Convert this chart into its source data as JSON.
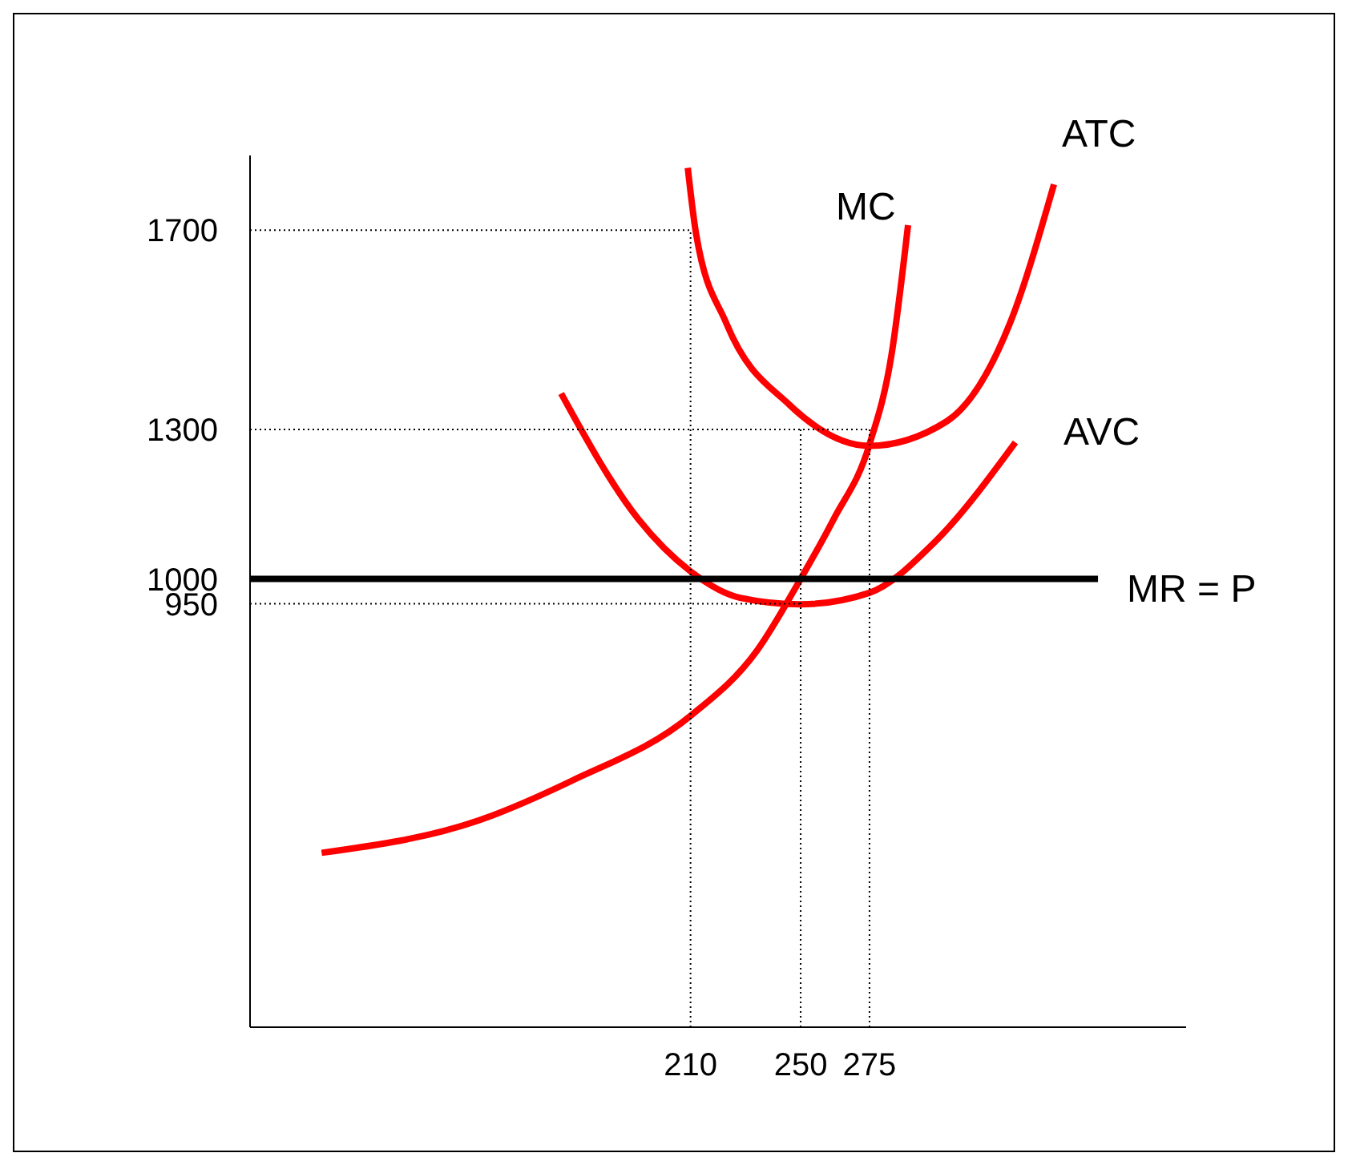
{
  "chart_data": {
    "type": "line",
    "xlim": [
      50,
      390
    ],
    "ylim": [
      100,
      1850
    ],
    "xticks": [
      210,
      250,
      275
    ],
    "yticks": [
      950,
      1000,
      1300,
      1700
    ],
    "grid": false,
    "legend": false,
    "marker": "none",
    "line_style": "solid",
    "series": [
      {
        "name": "MC",
        "color": "#ff0000",
        "x": [
          76,
          133,
          167,
          210,
          234,
          250,
          262,
          275,
          283,
          289
        ],
        "values": [
          450,
          515,
          595,
          725,
          855,
          1000,
          1120,
          1270,
          1450,
          1710
        ]
      },
      {
        "name": "ATC",
        "color": "#ff0000",
        "x": [
          209,
          212,
          223,
          246,
          275,
          303,
          326,
          342
        ],
        "values": [
          1825,
          1693,
          1513,
          1349,
          1267,
          1316,
          1513,
          1792
        ]
      },
      {
        "name": "AVC",
        "color": "#ff0000",
        "x": [
          163,
          191,
          210,
          228,
          250,
          275,
          298,
          328
        ],
        "values": [
          1372,
          1120,
          1015,
          962,
          949,
          972,
          1070,
          1274
        ]
      },
      {
        "name": "MR = P",
        "color": "#000000",
        "x": [
          50,
          358
        ],
        "values": [
          1000,
          1000
        ]
      },
      {
        "color": "#000000",
        "line_style": "dotted",
        "x": [
          50,
          210
        ],
        "values": [
          1700,
          1700
        ]
      },
      {
        "color": "#000000",
        "line_style": "dotted",
        "x": [
          50,
          275
        ],
        "values": [
          1300,
          1300
        ]
      },
      {
        "color": "#000000",
        "line_style": "dotted",
        "x": [
          50,
          250
        ],
        "values": [
          950,
          950
        ]
      },
      {
        "color": "#000000",
        "line_style": "dotted",
        "x": [
          210,
          210
        ],
        "values": [
          100,
          1700
        ]
      },
      {
        "color": "#000000",
        "line_style": "dotted",
        "x": [
          250,
          250
        ],
        "values": [
          100,
          1300
        ]
      },
      {
        "color": "#000000",
        "line_style": "dotted",
        "x": [
          275,
          275
        ],
        "values": [
          100,
          1300
        ]
      }
    ]
  }
}
